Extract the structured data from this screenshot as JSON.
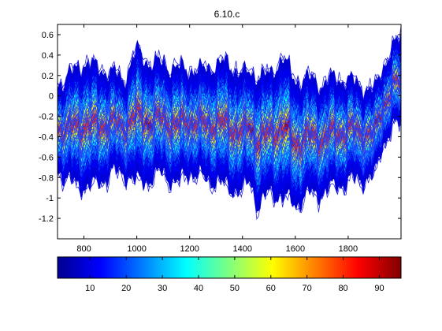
{
  "chart_data": {
    "type": "line",
    "title": "6.10.c",
    "description_style": "density of overlaid spectra",
    "xlabel": "",
    "ylabel": "",
    "xlim": [
      700,
      2000
    ],
    "ylim": [
      -1.4,
      0.7
    ],
    "x_ticks": [
      800,
      1000,
      1200,
      1400,
      1600,
      1800
    ],
    "y_ticks": [
      0.6,
      0.4,
      0.2,
      0,
      -0.2,
      -0.4,
      -0.6,
      -0.8,
      -1,
      -1.2
    ],
    "grid": false,
    "colorbar": {
      "orientation": "horizontal",
      "colormap": "jet",
      "range": [
        1,
        96
      ],
      "ticks": [
        10,
        20,
        30,
        40,
        50,
        60,
        70,
        80,
        90
      ]
    },
    "median_curve": {
      "x": [
        700,
        750,
        800,
        850,
        900,
        950,
        1000,
        1050,
        1100,
        1150,
        1200,
        1250,
        1300,
        1350,
        1400,
        1430,
        1460,
        1500,
        1550,
        1600,
        1650,
        1700,
        1750,
        1800,
        1850,
        1900,
        1930,
        1960,
        2000
      ],
      "y": [
        -0.3,
        -0.32,
        -0.28,
        -0.3,
        -0.26,
        -0.3,
        -0.2,
        -0.25,
        -0.22,
        -0.3,
        -0.24,
        -0.28,
        -0.26,
        -0.3,
        -0.36,
        -0.3,
        -0.44,
        -0.38,
        -0.3,
        -0.46,
        -0.4,
        -0.42,
        -0.36,
        -0.34,
        -0.36,
        -0.38,
        -0.1,
        0.05,
        0.15
      ]
    },
    "envelope_half_width": [
      0.22,
      0.28,
      0.32,
      0.3,
      0.26,
      0.24,
      0.34,
      0.3,
      0.28,
      0.3,
      0.26,
      0.28,
      0.3,
      0.32,
      0.3,
      0.28,
      0.34,
      0.3,
      0.36,
      0.32,
      0.3,
      0.28,
      0.28,
      0.26,
      0.24,
      0.22,
      0.2,
      0.2,
      0.22
    ],
    "series_count": 60
  }
}
